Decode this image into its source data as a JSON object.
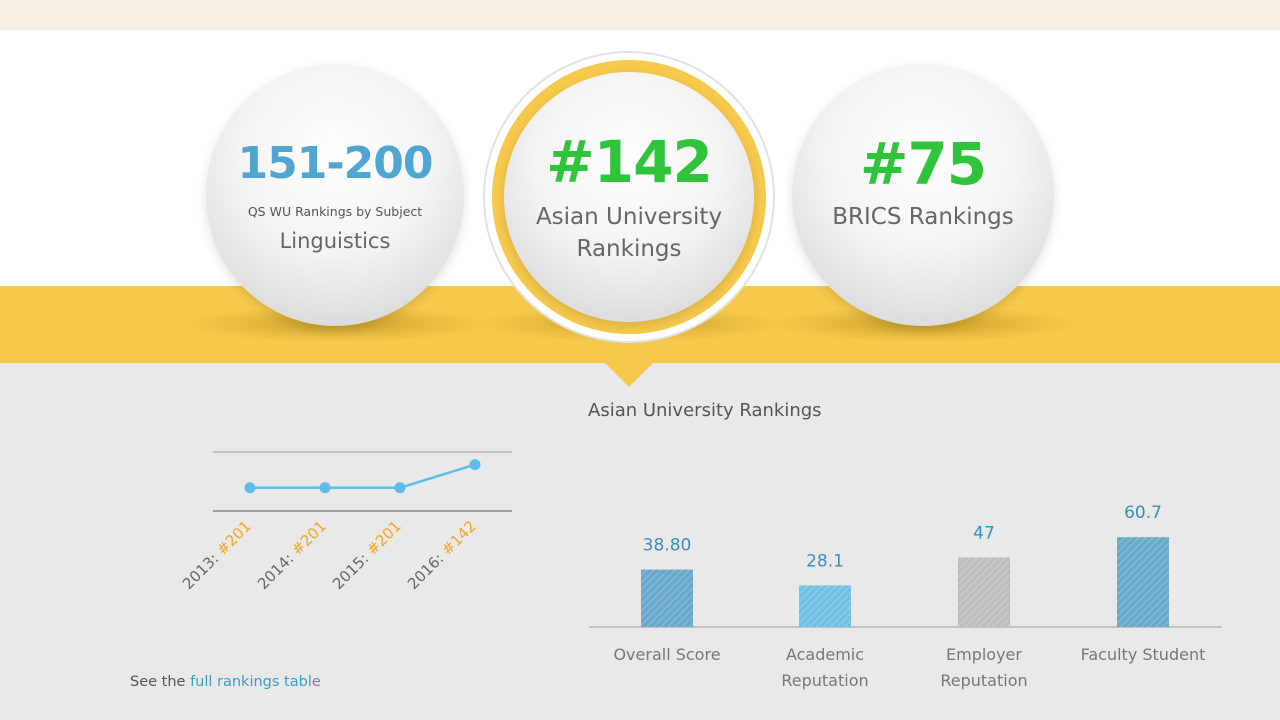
{
  "badges": {
    "left": {
      "rank": "151-200",
      "caption": "QS WU Rankings by Subject",
      "subject": "Linguistics"
    },
    "center": {
      "rank": "#142",
      "line1": "Asian University",
      "line2": "Rankings"
    },
    "right": {
      "rank": "#75",
      "label": "BRICS Rankings"
    }
  },
  "section_title": "Asian University Rankings",
  "footer": {
    "prefix": "See the ",
    "link": "full rankings table"
  },
  "colors": {
    "yellow": "#f6c94c",
    "green": "#2fc43b",
    "blue": "#4fa6d0",
    "line": "#5bbde8",
    "orange": "#f5a623"
  },
  "chart_data": [
    {
      "type": "line",
      "x": [
        "2013",
        "2014",
        "2015",
        "2016"
      ],
      "tick_labels": [
        {
          "year": "2013: ",
          "rank": "#201"
        },
        {
          "year": "2014: ",
          "rank": "#201"
        },
        {
          "year": "2015: ",
          "rank": "#201"
        },
        {
          "year": "2016: ",
          "rank": "#142"
        }
      ],
      "values": [
        201,
        201,
        201,
        142
      ],
      "ylim": [
        260,
        110
      ],
      "grid": false
    },
    {
      "type": "bar",
      "categories": [
        [
          "Overall Score"
        ],
        [
          "Academic",
          "Reputation"
        ],
        [
          "Employer",
          "Reputation"
        ],
        [
          "Faculty Student"
        ]
      ],
      "values": [
        38.8,
        28.1,
        47,
        60.7
      ],
      "labels": [
        "38.80",
        "28.1",
        "47",
        "60.7"
      ],
      "bar_colors": [
        "#6aa9c9",
        "#72c1e4",
        "#bdbdbd",
        "#6aa9c9"
      ],
      "ylim": [
        0,
        100
      ]
    }
  ]
}
